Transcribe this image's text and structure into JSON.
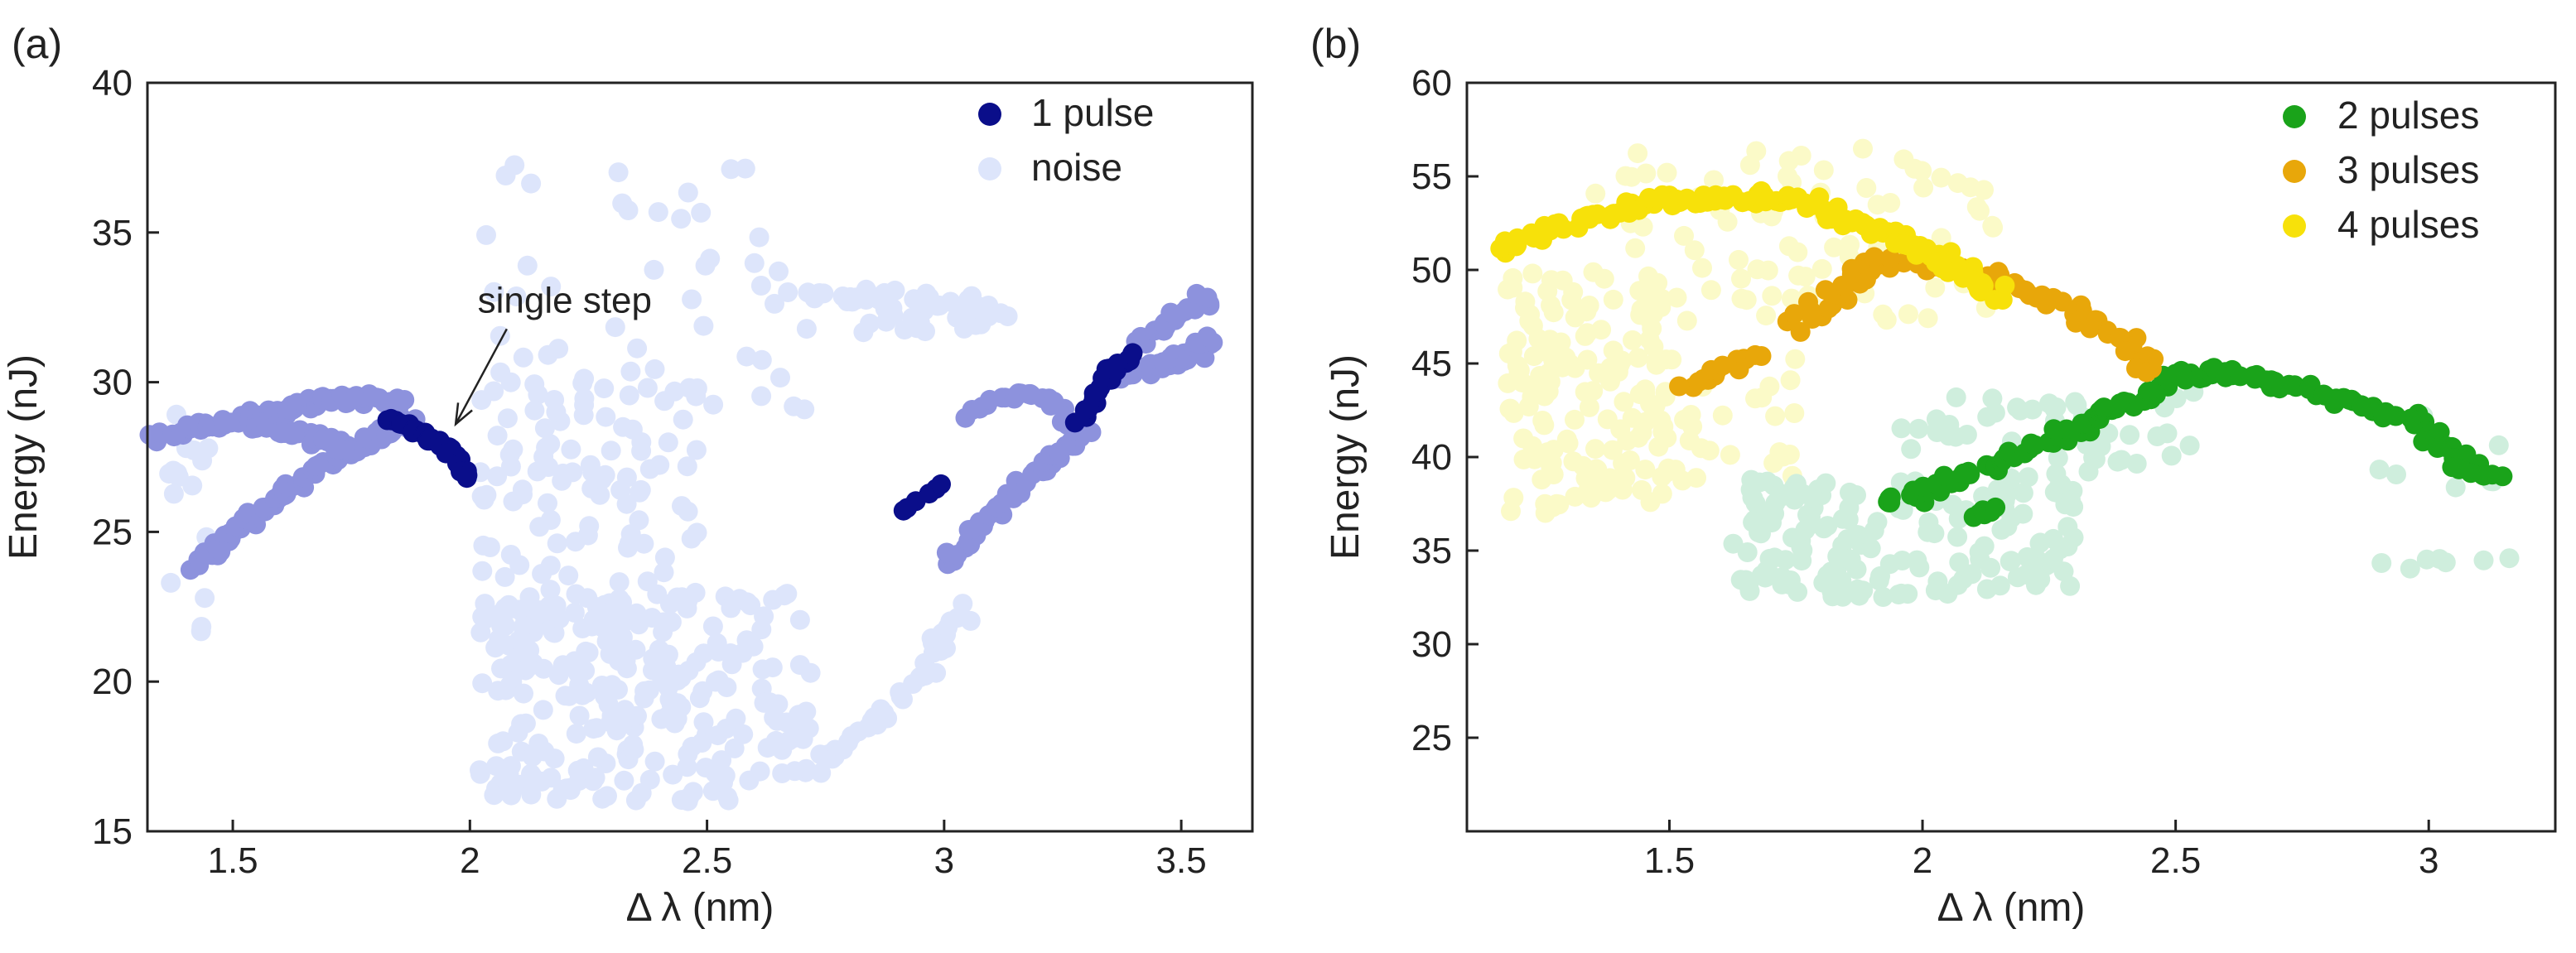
{
  "colors": {
    "one_pulse": "#0a0e8a",
    "one_pulse_light": "#8d92dd",
    "noise": "#dde5fb",
    "two_pulses": "#1aa31a",
    "two_pulses_light": "#cfeedd",
    "three_pulses": "#e8a70a",
    "four_pulses": "#f7e10a",
    "four_pulses_light": "#fbfac8"
  },
  "chart_data": [
    {
      "type": "scatter",
      "panel_label": "(a)",
      "xlabel": "Δ λ  (nm)",
      "ylabel": "Energy (nJ)",
      "xlim": [
        1.32,
        3.65
      ],
      "ylim": [
        15,
        40
      ],
      "xticks": [
        1.5,
        2,
        2.5,
        3,
        3.5
      ],
      "xtick_labels": [
        "1.5",
        "2",
        "2.5",
        "3",
        "3.5"
      ],
      "yticks": [
        15,
        20,
        25,
        30,
        35,
        40
      ],
      "ytick_labels": [
        "15",
        "20",
        "25",
        "30",
        "35",
        "40"
      ],
      "legend": [
        {
          "label": "1 pulse",
          "color_key": "one_pulse"
        },
        {
          "label": "noise",
          "color_key": "noise"
        }
      ],
      "annotations": [
        {
          "text": "single step",
          "x_text": 2.2,
          "y_text": 32.0,
          "x_arrow": 1.97,
          "y_arrow": 28.6
        }
      ],
      "series": [
        {
          "name": "noise",
          "color_key": "noise",
          "kind": "cloud",
          "seed": 11,
          "regions": [
            {
              "x": [
                2.02,
                2.72
              ],
              "y": [
                16.0,
                23.0
              ],
              "n": 260
            },
            {
              "x": [
                2.02,
                2.48
              ],
              "y": [
                21.0,
                30.0
              ],
              "n": 120
            },
            {
              "x": [
                2.02,
                2.72
              ],
              "y": [
                29.0,
                37.3
              ],
              "n": 55
            },
            {
              "x": [
                1.34,
                1.45
              ],
              "y": [
                21.5,
                29.0
              ],
              "n": 16
            },
            {
              "x": [
                2.8,
                3.12
              ],
              "y": [
                31.5,
                33.0
              ],
              "n": 30
            }
          ],
          "paths": [
            {
              "x": [
                2.72,
                2.85,
                2.97,
                3.03
              ],
              "y": [
                17.0,
                18.6,
                20.5,
                22.5
              ],
              "n": 40,
              "jitter": 0.25
            },
            {
              "x": [
                2.75,
                2.8,
                2.9,
                3.02,
                3.1
              ],
              "y": [
                33.0,
                32.8,
                32.9,
                32.6,
                32.2
              ],
              "n": 30,
              "jitter": 0.3
            }
          ]
        },
        {
          "name": "1 pulse (light)",
          "color_key": "one_pulse_light",
          "kind": "cloud",
          "seed": 23,
          "paths": [
            {
              "x": [
                1.42,
                1.5,
                1.6,
                1.7,
                1.8,
                1.87
              ],
              "y": [
                23.8,
                25.0,
                26.2,
                27.3,
                28.2,
                28.8
              ],
              "n": 90,
              "jitter": 0.18
            },
            {
              "x": [
                1.33,
                1.45,
                1.55,
                1.65,
                1.75,
                1.85
              ],
              "y": [
                28.2,
                28.5,
                28.9,
                29.2,
                29.5,
                29.3
              ],
              "n": 80,
              "jitter": 0.2
            },
            {
              "x": [
                1.55,
                1.65,
                1.75,
                1.85
              ],
              "y": [
                28.6,
                28.3,
                27.8,
                28.4
              ],
              "n": 40,
              "jitter": 0.25
            },
            {
              "x": [
                3.0,
                3.08,
                3.16,
                3.24,
                3.3
              ],
              "y": [
                24.0,
                25.2,
                26.5,
                27.6,
                28.4
              ],
              "n": 45,
              "jitter": 0.18
            },
            {
              "x": [
                3.05,
                3.12,
                3.18,
                3.23,
                3.27
              ],
              "y": [
                28.8,
                29.4,
                29.7,
                29.3,
                28.3
              ],
              "n": 25,
              "jitter": 0.15
            },
            {
              "x": [
                3.37,
                3.43,
                3.5,
                3.56
              ],
              "y": [
                30.2,
                30.5,
                30.8,
                31.5
              ],
              "n": 35,
              "jitter": 0.22
            },
            {
              "x": [
                3.4,
                3.46,
                3.52,
                3.56
              ],
              "y": [
                31.2,
                31.8,
                32.5,
                32.8
              ],
              "n": 25,
              "jitter": 0.2
            }
          ]
        },
        {
          "name": "1 pulse",
          "color_key": "one_pulse",
          "kind": "cloud",
          "seed": 37,
          "paths": [
            {
              "x": [
                1.82,
                1.88,
                1.93,
                1.97,
                2.0
              ],
              "y": [
                28.8,
                28.5,
                28.0,
                27.5,
                26.8
              ],
              "n": 40,
              "jitter": 0.12
            },
            {
              "x": [
                2.9,
                2.94,
                2.98,
                3.0
              ],
              "y": [
                25.6,
                26.0,
                26.4,
                26.6
              ],
              "n": 6,
              "jitter": 0.05
            },
            {
              "x": [
                3.28,
                3.32,
                3.36,
                3.4
              ],
              "y": [
                28.6,
                29.6,
                30.4,
                31.0
              ],
              "n": 22,
              "jitter": 0.15
            }
          ]
        }
      ]
    },
    {
      "type": "scatter",
      "panel_label": "(b)",
      "xlabel": "Δ λ  (nm)",
      "ylabel": "Energy (nJ)",
      "xlim": [
        1.1,
        3.25
      ],
      "ylim": [
        20,
        60
      ],
      "xticks": [
        1.5,
        2,
        2.5,
        3
      ],
      "xtick_labels": [
        "1.5",
        "2",
        "2.5",
        "3"
      ],
      "yticks": [
        25,
        30,
        35,
        40,
        45,
        50,
        55,
        60
      ],
      "ytick_labels": [
        "25",
        "30",
        "35",
        "40",
        "45",
        "50",
        "55",
        "60"
      ],
      "legend": [
        {
          "label": "2 pulses",
          "color_key": "two_pulses"
        },
        {
          "label": "3 pulses",
          "color_key": "three_pulses"
        },
        {
          "label": "4 pulses",
          "color_key": "four_pulses"
        }
      ],
      "series": [
        {
          "name": "4 pulses (light)",
          "color_key": "four_pulses_light",
          "kind": "cloud",
          "seed": 41,
          "regions": [
            {
              "x": [
                1.18,
                1.5
              ],
              "y": [
                37.0,
                50.0
              ],
              "n": 150
            },
            {
              "x": [
                1.3,
                2.15
              ],
              "y": [
                47.0,
                56.5
              ],
              "n": 90
            },
            {
              "x": [
                1.45,
                1.75
              ],
              "y": [
                38.0,
                46.0
              ],
              "n": 30
            }
          ]
        },
        {
          "name": "2 pulses (light)",
          "color_key": "two_pulses_light",
          "kind": "cloud",
          "seed": 53,
          "regions": [
            {
              "x": [
                1.62,
                2.3
              ],
              "y": [
                32.5,
                39.0
              ],
              "n": 170
            },
            {
              "x": [
                1.95,
                2.55
              ],
              "y": [
                39.0,
                43.5
              ],
              "n": 50
            },
            {
              "x": [
                2.9,
                3.18
              ],
              "y": [
                34.0,
                42.5
              ],
              "n": 14
            }
          ]
        },
        {
          "name": "2 pulses",
          "color_key": "two_pulses",
          "kind": "cloud",
          "seed": 67,
          "paths": [
            {
              "x": [
                1.93,
                2.05,
                2.2,
                2.35,
                2.48
              ],
              "y": [
                37.5,
                38.6,
                40.3,
                42.0,
                43.8
              ],
              "n": 75,
              "jitter": 0.3
            },
            {
              "x": [
                2.1,
                2.15
              ],
              "y": [
                36.8,
                37.3
              ],
              "n": 6,
              "jitter": 0.15
            },
            {
              "x": [
                2.48,
                2.6,
                2.72,
                2.85,
                2.97,
                3.05,
                3.12
              ],
              "y": [
                44.2,
                44.6,
                43.8,
                43.0,
                41.8,
                40.0,
                38.8
              ],
              "n": 80,
              "jitter": 0.3
            }
          ]
        },
        {
          "name": "3 pulses",
          "color_key": "three_pulses",
          "kind": "cloud",
          "seed": 79,
          "paths": [
            {
              "x": [
                1.53,
                1.6,
                1.68
              ],
              "y": [
                43.8,
                44.6,
                45.5
              ],
              "n": 18,
              "jitter": 0.25
            },
            {
              "x": [
                1.75,
                1.82,
                1.88,
                1.95
              ],
              "y": [
                47.0,
                48.5,
                50.0,
                50.5
              ],
              "n": 30,
              "jitter": 0.35
            },
            {
              "x": [
                2.0,
                2.1,
                2.2,
                2.3,
                2.4,
                2.47
              ],
              "y": [
                50.3,
                50.0,
                49.0,
                47.8,
                46.2,
                44.5
              ],
              "n": 50,
              "jitter": 0.3
            }
          ]
        },
        {
          "name": "4 pulses",
          "color_key": "four_pulses",
          "kind": "cloud",
          "seed": 97,
          "paths": [
            {
              "x": [
                1.17,
                1.3,
                1.45,
                1.6,
                1.75,
                1.9,
                2.05,
                2.15
              ],
              "y": [
                51.0,
                52.5,
                53.5,
                54.0,
                53.7,
                52.3,
                50.5,
                48.5
              ],
              "n": 150,
              "jitter": 0.35
            }
          ]
        }
      ]
    }
  ]
}
